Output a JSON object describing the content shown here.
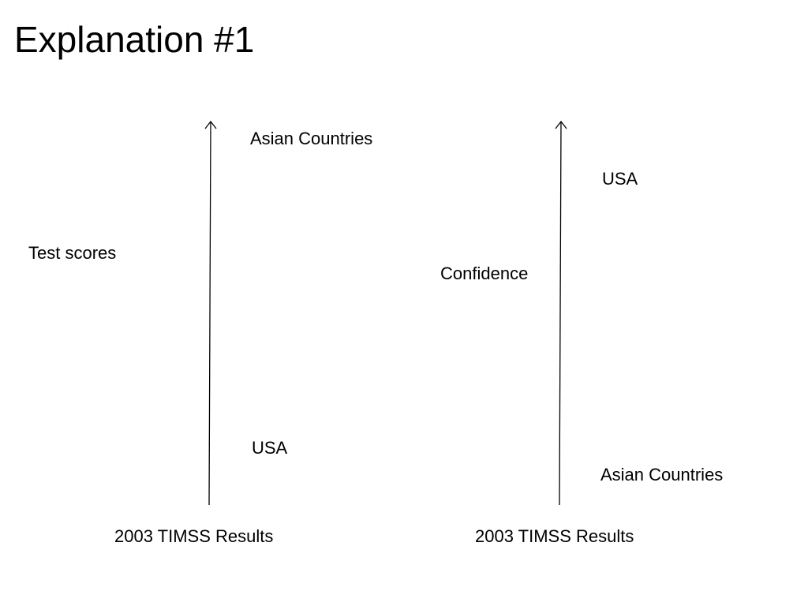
{
  "slide": {
    "title": "Explanation #1"
  },
  "diagrams": [
    {
      "axis_label": "Test scores",
      "top_label": "Asian Countries",
      "bottom_label": "USA",
      "caption": "2003 TIMSS Results"
    },
    {
      "axis_label": "Confidence",
      "top_label": "USA",
      "bottom_label": "Asian Countries",
      "caption": "2003 TIMSS Results"
    }
  ]
}
